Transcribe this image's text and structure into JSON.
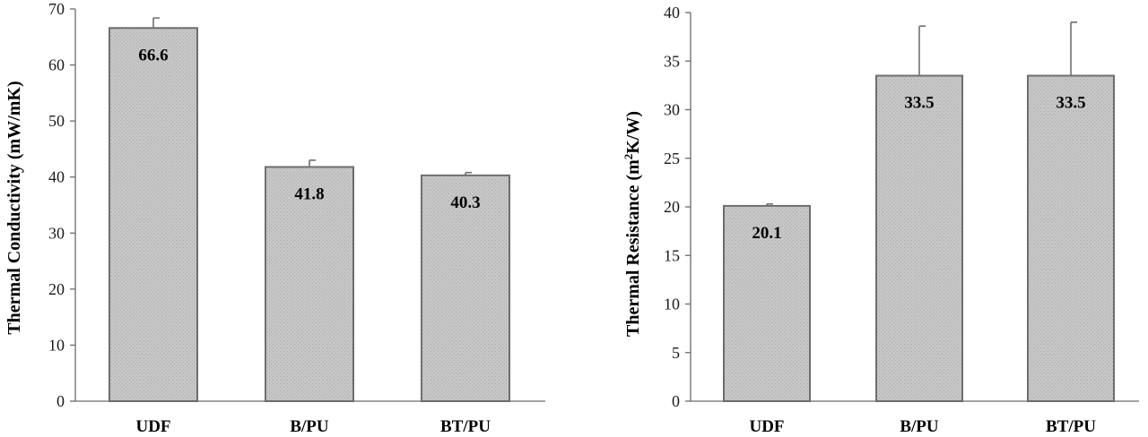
{
  "colors": {
    "bar_fill": "#c4c4c4",
    "bar_stroke": "#6e6e6e",
    "axis": "#6b6b6b",
    "error_bar": "#707070"
  },
  "chart_data": [
    {
      "type": "bar",
      "categories": [
        "UDF",
        "B/PU",
        "BT/PU"
      ],
      "values": [
        66.6,
        41.8,
        40.3
      ],
      "data_labels": [
        "66.6",
        "41.8",
        "40.3"
      ],
      "error_upper": [
        68.4,
        43.0,
        40.8
      ],
      "title": "",
      "xlabel": "",
      "ylabel": "Thermal Conductivity (mW/mK)",
      "ylim": [
        0,
        70
      ],
      "yticks": [
        0,
        10,
        20,
        30,
        40,
        50,
        60,
        70
      ],
      "grid": false,
      "legend": "none"
    },
    {
      "type": "bar",
      "categories": [
        "UDF",
        "B/PU",
        "BT/PU"
      ],
      "values": [
        20.1,
        33.5,
        33.5
      ],
      "data_labels": [
        "20.1",
        "33.5",
        "33.5"
      ],
      "error_upper": [
        20.3,
        38.6,
        39.0
      ],
      "title": "",
      "xlabel": "",
      "ylabel_main": "Thermal Resistance (m",
      "ylabel_sup": "2",
      "ylabel_tail": "K/W)",
      "ylim": [
        0,
        40
      ],
      "yticks": [
        0,
        5,
        10,
        15,
        20,
        25,
        30,
        35,
        40
      ],
      "grid": false,
      "legend": "none"
    }
  ]
}
